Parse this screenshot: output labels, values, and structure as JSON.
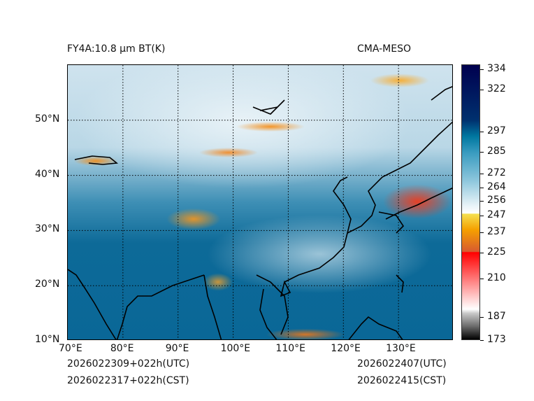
{
  "header": {
    "title": "FY4A:10.8 µm BT(K)",
    "model": "CMA-MESO"
  },
  "axes": {
    "lon_labels": [
      "70°E",
      "80°E",
      "90°E",
      "100°E",
      "110°E",
      "120°E",
      "130°E"
    ],
    "lon_values": [
      70,
      80,
      90,
      100,
      110,
      120,
      130
    ],
    "lat_labels": [
      "10°N",
      "20°N",
      "30°N",
      "40°N",
      "50°N"
    ],
    "lat_values": [
      10,
      20,
      30,
      40,
      50
    ],
    "lon_range": [
      70,
      140
    ],
    "lat_range": [
      10,
      60
    ]
  },
  "colorbar": {
    "ticks": [
      "334",
      "322",
      "297",
      "285",
      "272",
      "264",
      "256",
      "247",
      "237",
      "225",
      "210",
      "187",
      "173"
    ],
    "colors": {
      "cold_max": "#000000",
      "red": "#ff0000",
      "orange": "#f5a000",
      "yellow": "#f5e050",
      "white": "#ffffff",
      "teal": "#0077a0",
      "navy": "#00004f"
    }
  },
  "footer": {
    "init_utc": "2026022309+022h(UTC)",
    "init_cst": "2026022317+022h(CST)",
    "valid_utc": "2026022407(UTC)",
    "valid_cst": "2026022415(CST)"
  }
}
